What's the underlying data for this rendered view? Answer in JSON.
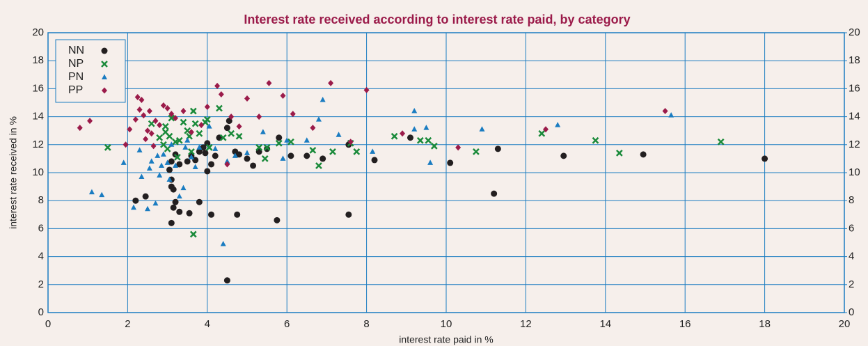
{
  "chart_data": {
    "type": "scatter",
    "title": "Interest rate received according to interest rate paid, by category",
    "x_label": "interest rate paid in %",
    "y_label": "interest rate received in %",
    "xlim": [
      0,
      20
    ],
    "xticks": [
      0,
      2,
      4,
      6,
      8,
      10,
      12,
      14,
      16,
      18,
      20
    ],
    "ylim": [
      0,
      20
    ],
    "yticks": [
      0,
      2,
      4,
      6,
      8,
      10,
      12,
      14,
      16,
      18,
      20
    ],
    "y2lim": [
      0,
      20
    ],
    "y2ticks": [
      0,
      2,
      4,
      6,
      8,
      10,
      12,
      14,
      16,
      18,
      20
    ],
    "grid": true,
    "legend": "upper left",
    "series": [
      {
        "name": "NN",
        "color": "#231f20",
        "marker": "circle",
        "x": [
          2.2,
          2.45,
          3.1,
          3.15,
          3.2,
          3.3,
          3.55,
          3.8,
          3.1,
          3.1,
          3.15,
          3.05,
          3.1,
          3.2,
          3.3,
          3.5,
          3.6,
          3.8,
          3.9,
          4.0,
          4.0,
          4.1,
          4.1,
          4.2,
          4.3,
          4.5,
          4.55,
          4.5,
          4.7,
          4.75,
          4.8,
          5.0,
          5.15,
          5.3,
          5.5,
          5.75,
          5.8,
          6.1,
          6.5,
          6.9,
          7.55,
          7.55,
          8.2,
          9.1,
          10.1,
          11.2,
          11.3,
          12.95,
          14.95,
          18.0,
          3.7,
          3.95
        ],
        "values": [
          8.0,
          8.3,
          6.4,
          7.5,
          7.9,
          7.2,
          7.1,
          7.9,
          9.5,
          9.0,
          8.8,
          10.2,
          10.8,
          11.3,
          10.6,
          10.8,
          11.2,
          11.5,
          11.8,
          12.1,
          10.1,
          10.6,
          7.0,
          11.2,
          12.5,
          13.2,
          13.7,
          2.3,
          11.5,
          7.0,
          11.3,
          11.0,
          10.5,
          11.5,
          11.7,
          6.6,
          12.5,
          11.2,
          11.2,
          11.0,
          12.0,
          7.0,
          10.9,
          12.5,
          10.7,
          8.5,
          11.7,
          11.2,
          11.3,
          11.0,
          10.9,
          11.4
        ]
      },
      {
        "name": "NP",
        "color": "#1a8a3a",
        "marker": "x",
        "x": [
          1.5,
          2.6,
          2.8,
          2.9,
          2.95,
          3.0,
          3.05,
          3.1,
          3.2,
          3.3,
          3.4,
          3.5,
          3.55,
          3.6,
          3.65,
          3.7,
          3.8,
          3.95,
          4.0,
          4.05,
          4.3,
          4.4,
          4.6,
          4.8,
          5.3,
          5.45,
          5.5,
          5.8,
          6.1,
          6.65,
          6.8,
          7.15,
          7.6,
          7.75,
          8.7,
          9.35,
          9.55,
          9.7,
          10.75,
          12.4,
          13.75,
          14.35,
          16.9,
          3.65,
          2.95,
          3.25
        ],
        "values": [
          11.8,
          13.5,
          12.5,
          12.0,
          13.3,
          11.7,
          12.6,
          13.9,
          12.2,
          12.3,
          13.6,
          13.0,
          12.6,
          11.5,
          14.4,
          13.5,
          12.8,
          13.6,
          13.8,
          11.8,
          14.6,
          12.5,
          12.8,
          12.6,
          11.8,
          11.0,
          11.8,
          12.1,
          12.2,
          11.6,
          10.5,
          11.5,
          12.1,
          11.5,
          12.6,
          12.3,
          12.3,
          11.9,
          11.5,
          12.8,
          12.3,
          11.4,
          12.2,
          5.6,
          12.9,
          11.1
        ]
      },
      {
        "name": "PN",
        "color": "#1a7cc1",
        "marker": "triangle",
        "x": [
          1.1,
          1.35,
          1.9,
          2.15,
          2.3,
          2.5,
          2.55,
          2.6,
          2.7,
          2.75,
          2.8,
          2.85,
          2.9,
          3.0,
          3.05,
          3.1,
          3.2,
          3.4,
          3.45,
          3.5,
          3.6,
          3.7,
          3.8,
          4.05,
          4.2,
          4.4,
          4.5,
          4.7,
          5.0,
          5.4,
          5.9,
          6.0,
          6.5,
          6.8,
          6.9,
          7.3,
          8.15,
          9.2,
          9.2,
          9.5,
          9.6,
          10.9,
          12.8,
          15.65,
          3.3,
          2.35
        ],
        "values": [
          8.6,
          8.4,
          10.7,
          7.5,
          11.6,
          7.4,
          10.3,
          10.8,
          7.8,
          11.2,
          9.8,
          10.5,
          11.3,
          10.7,
          9.5,
          12.0,
          10.5,
          8.9,
          11.8,
          12.3,
          11.1,
          10.4,
          11.8,
          13.3,
          11.7,
          4.9,
          10.8,
          11.2,
          11.4,
          12.9,
          11.0,
          12.3,
          12.3,
          13.8,
          15.2,
          12.7,
          11.5,
          14.4,
          13.1,
          13.2,
          10.7,
          13.1,
          13.4,
          14.1,
          8.3,
          9.7
        ]
      },
      {
        "name": "PP",
        "color": "#9b1b4a",
        "marker": "diamond",
        "x": [
          0.8,
          1.05,
          1.95,
          2.05,
          2.2,
          2.25,
          2.3,
          2.35,
          2.4,
          2.45,
          2.5,
          2.55,
          2.6,
          2.7,
          2.8,
          2.9,
          3.0,
          3.1,
          3.2,
          3.4,
          3.6,
          3.85,
          4.0,
          4.25,
          4.35,
          4.5,
          4.6,
          4.8,
          5.0,
          5.3,
          5.55,
          5.9,
          6.15,
          6.65,
          7.1,
          7.6,
          8.0,
          8.9,
          10.3,
          12.5,
          15.5,
          2.65
        ],
        "values": [
          13.2,
          13.7,
          12.0,
          13.1,
          13.8,
          15.4,
          14.5,
          15.2,
          14.1,
          12.4,
          13.0,
          14.4,
          12.8,
          13.7,
          13.4,
          14.8,
          14.6,
          14.2,
          13.9,
          14.4,
          12.9,
          13.4,
          14.7,
          16.2,
          15.6,
          10.6,
          14.0,
          13.3,
          15.3,
          14.0,
          16.4,
          15.5,
          14.2,
          13.2,
          16.4,
          12.2,
          15.9,
          12.8,
          11.8,
          13.1,
          14.4,
          11.9
        ]
      }
    ]
  }
}
